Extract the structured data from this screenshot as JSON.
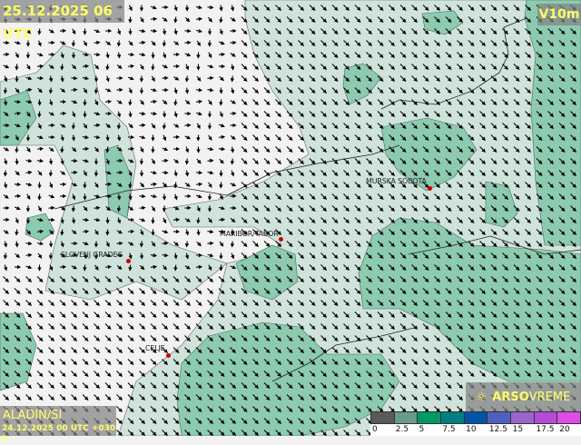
{
  "header": {
    "timestamp": "25.12.2025 06 UTC",
    "parameter": "V10m"
  },
  "footer": {
    "model": "ALADIN/SI",
    "run": "24.12.2025 00 UTC +030 h"
  },
  "logo": {
    "brand_bold": "ARSO",
    "brand_light": "VREME",
    "icon": "sun-icon"
  },
  "legend": {
    "ticks": [
      "0",
      "2.5",
      "5",
      "7.5",
      "10",
      "12.5",
      "15",
      "17.5",
      "20"
    ],
    "colors": [
      "#5a5a5a",
      "#6a9a88",
      "#009966",
      "#008080",
      "#0055aa",
      "#5060c0",
      "#9966cc",
      "#b44cd9",
      "#e04ce8"
    ]
  },
  "cities": [
    {
      "name": "MURSKA SOBOTA"
    },
    {
      "name": "MARIBOR/TABOR"
    },
    {
      "name": "SLOVENJ GRADEC"
    },
    {
      "name": "CELJE"
    }
  ],
  "colors": {
    "calm_land": "#f2f2f2",
    "wind_light": "#cfe3dc",
    "wind_medium": "#8ccbb0",
    "label": "#ffff66",
    "station": "#cc0000"
  },
  "wind_direction": "north-east (arrows pointing south-west)"
}
